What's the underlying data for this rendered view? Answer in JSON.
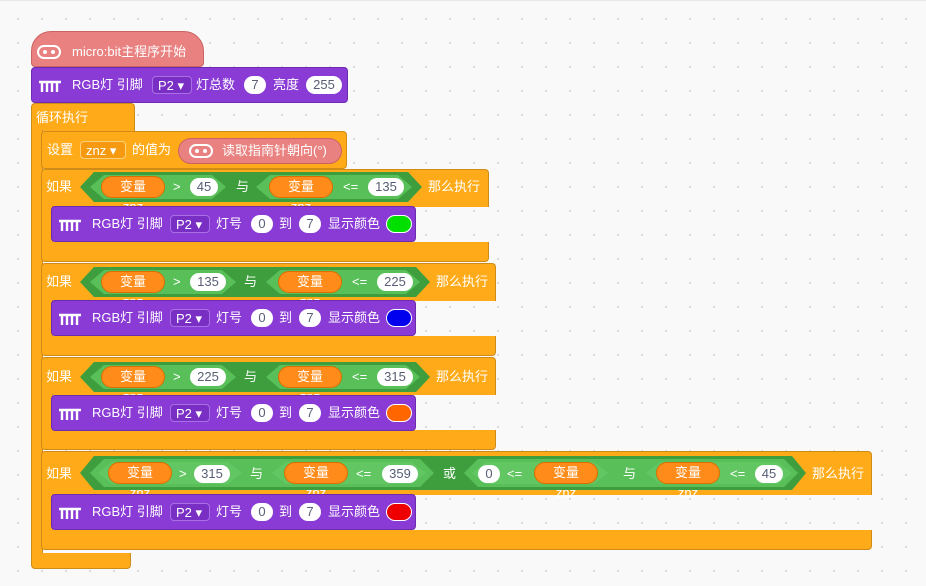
{
  "hat": {
    "label": "micro:bit主程序开始"
  },
  "rgb_init": {
    "label": "RGB灯 引脚",
    "pin": "P2",
    "count_label": "灯总数",
    "count": "7",
    "brightness_label": "亮度",
    "brightness": "255"
  },
  "forever": {
    "label": "循环执行"
  },
  "set_var": {
    "label": "设置",
    "var": "znz",
    "mid": "的值为",
    "reporter": "读取指南针朝向(°)"
  },
  "ifs": [
    {
      "if_label": "如果",
      "then_label": "那么执行",
      "var_label": "变量 znz",
      "op1": ">",
      "val1": "45",
      "and": "与",
      "op2": "<=",
      "val2": "135",
      "action": {
        "label": "RGB灯 引脚",
        "pin": "P2",
        "num_label": "灯号",
        "from": "0",
        "to_label": "到",
        "to": "7",
        "color_label": "显示颜色",
        "color": "#00e000"
      }
    },
    {
      "if_label": "如果",
      "then_label": "那么执行",
      "var_label": "变量 znz",
      "op1": ">",
      "val1": "135",
      "and": "与",
      "op2": "<=",
      "val2": "225",
      "action": {
        "label": "RGB灯 引脚",
        "pin": "P2",
        "num_label": "灯号",
        "from": "0",
        "to_label": "到",
        "to": "7",
        "color_label": "显示颜色",
        "color": "#0000ee"
      }
    },
    {
      "if_label": "如果",
      "then_label": "那么执行",
      "var_label": "变量 znz",
      "op1": ">",
      "val1": "225",
      "and": "与",
      "op2": "<=",
      "val2": "315",
      "action": {
        "label": "RGB灯 引脚",
        "pin": "P2",
        "num_label": "灯号",
        "from": "0",
        "to_label": "到",
        "to": "7",
        "color_label": "显示颜色",
        "color": "#ff6600"
      }
    },
    {
      "if_label": "如果",
      "then_label": "那么执行",
      "var_label": "变量 znz",
      "op1": ">",
      "val1": "315",
      "and": "与",
      "op2": "<=",
      "val2": "359",
      "or": "或",
      "val3": "0",
      "op3": "<=",
      "and2": "与",
      "op4": "<=",
      "val4": "45",
      "action": {
        "label": "RGB灯 引脚",
        "pin": "P2",
        "num_label": "灯号",
        "from": "0",
        "to_label": "到",
        "to": "7",
        "color_label": "显示颜色",
        "color": "#ee0000"
      }
    }
  ],
  "colors": {
    "control": "#ffab19",
    "rgb": "#8a3bd6",
    "microbit": "#e8817f",
    "operator": "#59c059",
    "variable": "#ff8c1a"
  },
  "icons": {
    "microbit": "microbit-icon",
    "rgb": "rgb-led-icon"
  }
}
